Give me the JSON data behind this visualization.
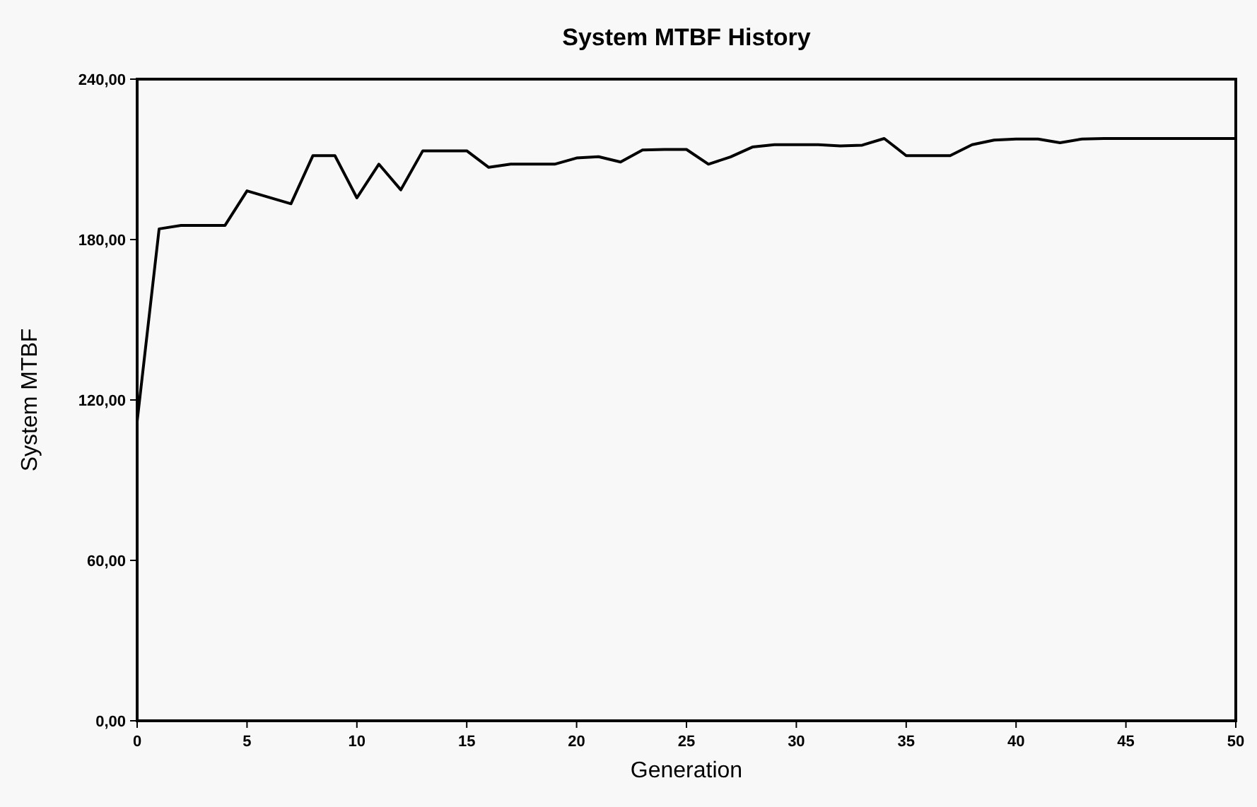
{
  "chart_data": {
    "type": "line",
    "title": "System MTBF History",
    "xlabel": "Generation",
    "ylabel": "System MTBF",
    "x": [
      0,
      1,
      2,
      4,
      5,
      7,
      8,
      9,
      10,
      11,
      12,
      13,
      15,
      16,
      17,
      19,
      20,
      21,
      22,
      23,
      24,
      25,
      26,
      27,
      28,
      29,
      30,
      31,
      32,
      33,
      34,
      35,
      36,
      37,
      38,
      39,
      40,
      41,
      42,
      43,
      44,
      50
    ],
    "series": [
      {
        "color": "#000000",
        "values": [
          112,
          184,
          185.3,
          185.3,
          198.2,
          193.4,
          211.4,
          211.4,
          195.6,
          208.2,
          198.6,
          213.2,
          213.2,
          207,
          208.2,
          208.2,
          210.5,
          211,
          209,
          213.5,
          213.7,
          213.7,
          208.2,
          210.9,
          214.6,
          215.5,
          215.5,
          215.5,
          215,
          215.3,
          217.8,
          211.4,
          211.4,
          211.4,
          215.5,
          217.2,
          217.6,
          217.6,
          216.2,
          217.6,
          217.8,
          217.8
        ]
      }
    ],
    "xlim": [
      0,
      50
    ],
    "xticks": [
      0,
      5,
      10,
      15,
      20,
      25,
      30,
      35,
      40,
      45,
      50
    ],
    "ylim": [
      0,
      240
    ],
    "yticks": [
      {
        "value": 0,
        "label": "0,00"
      },
      {
        "value": 60,
        "label": "60,00"
      },
      {
        "value": 120,
        "label": "120,00"
      },
      {
        "value": 180,
        "label": "180,00"
      },
      {
        "value": 240,
        "label": "240,00"
      }
    ],
    "grid": false,
    "marker": "none",
    "line_style": "solid"
  }
}
